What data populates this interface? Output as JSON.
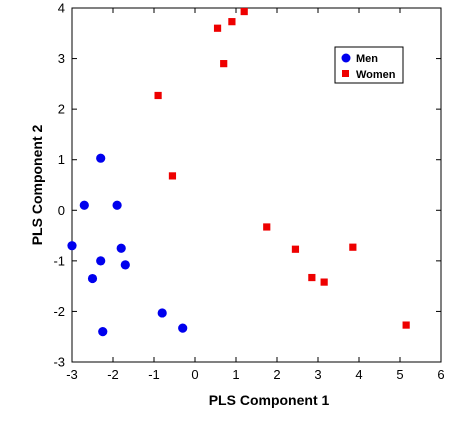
{
  "chart_data": {
    "type": "scatter",
    "xlabel": "PLS Component 1",
    "ylabel": "PLS Component 2",
    "xlim": [
      -3,
      6
    ],
    "ylim": [
      -3,
      4
    ],
    "xticks": [
      "-3",
      "-2",
      "-1",
      "0",
      "1",
      "2",
      "3",
      "4",
      "5",
      "6"
    ],
    "yticks": [
      "-3",
      "-2",
      "-1",
      "0",
      "1",
      "2",
      "3",
      "4"
    ],
    "grid": false,
    "legend_position": "top-right",
    "series": [
      {
        "name": "Men",
        "marker": "circle",
        "color": "#0000ee",
        "points": [
          [
            -2.3,
            1.03
          ],
          [
            -2.7,
            0.1
          ],
          [
            -1.9,
            0.1
          ],
          [
            -3.0,
            -0.7
          ],
          [
            -1.8,
            -0.75
          ],
          [
            -2.3,
            -1.0
          ],
          [
            -1.7,
            -1.08
          ],
          [
            -2.5,
            -1.35
          ],
          [
            -0.8,
            -2.03
          ],
          [
            -0.3,
            -2.33
          ],
          [
            -2.25,
            -2.4
          ]
        ]
      },
      {
        "name": "Women",
        "marker": "square",
        "color": "#ee0000",
        "points": [
          [
            1.2,
            3.93
          ],
          [
            0.9,
            3.73
          ],
          [
            0.55,
            3.6
          ],
          [
            0.7,
            2.9
          ],
          [
            -0.9,
            2.27
          ],
          [
            -0.55,
            0.68
          ],
          [
            1.75,
            -0.33
          ],
          [
            2.45,
            -0.77
          ],
          [
            3.85,
            -0.73
          ],
          [
            2.85,
            -1.33
          ],
          [
            3.15,
            -1.42
          ],
          [
            5.15,
            -2.27
          ]
        ]
      }
    ]
  }
}
